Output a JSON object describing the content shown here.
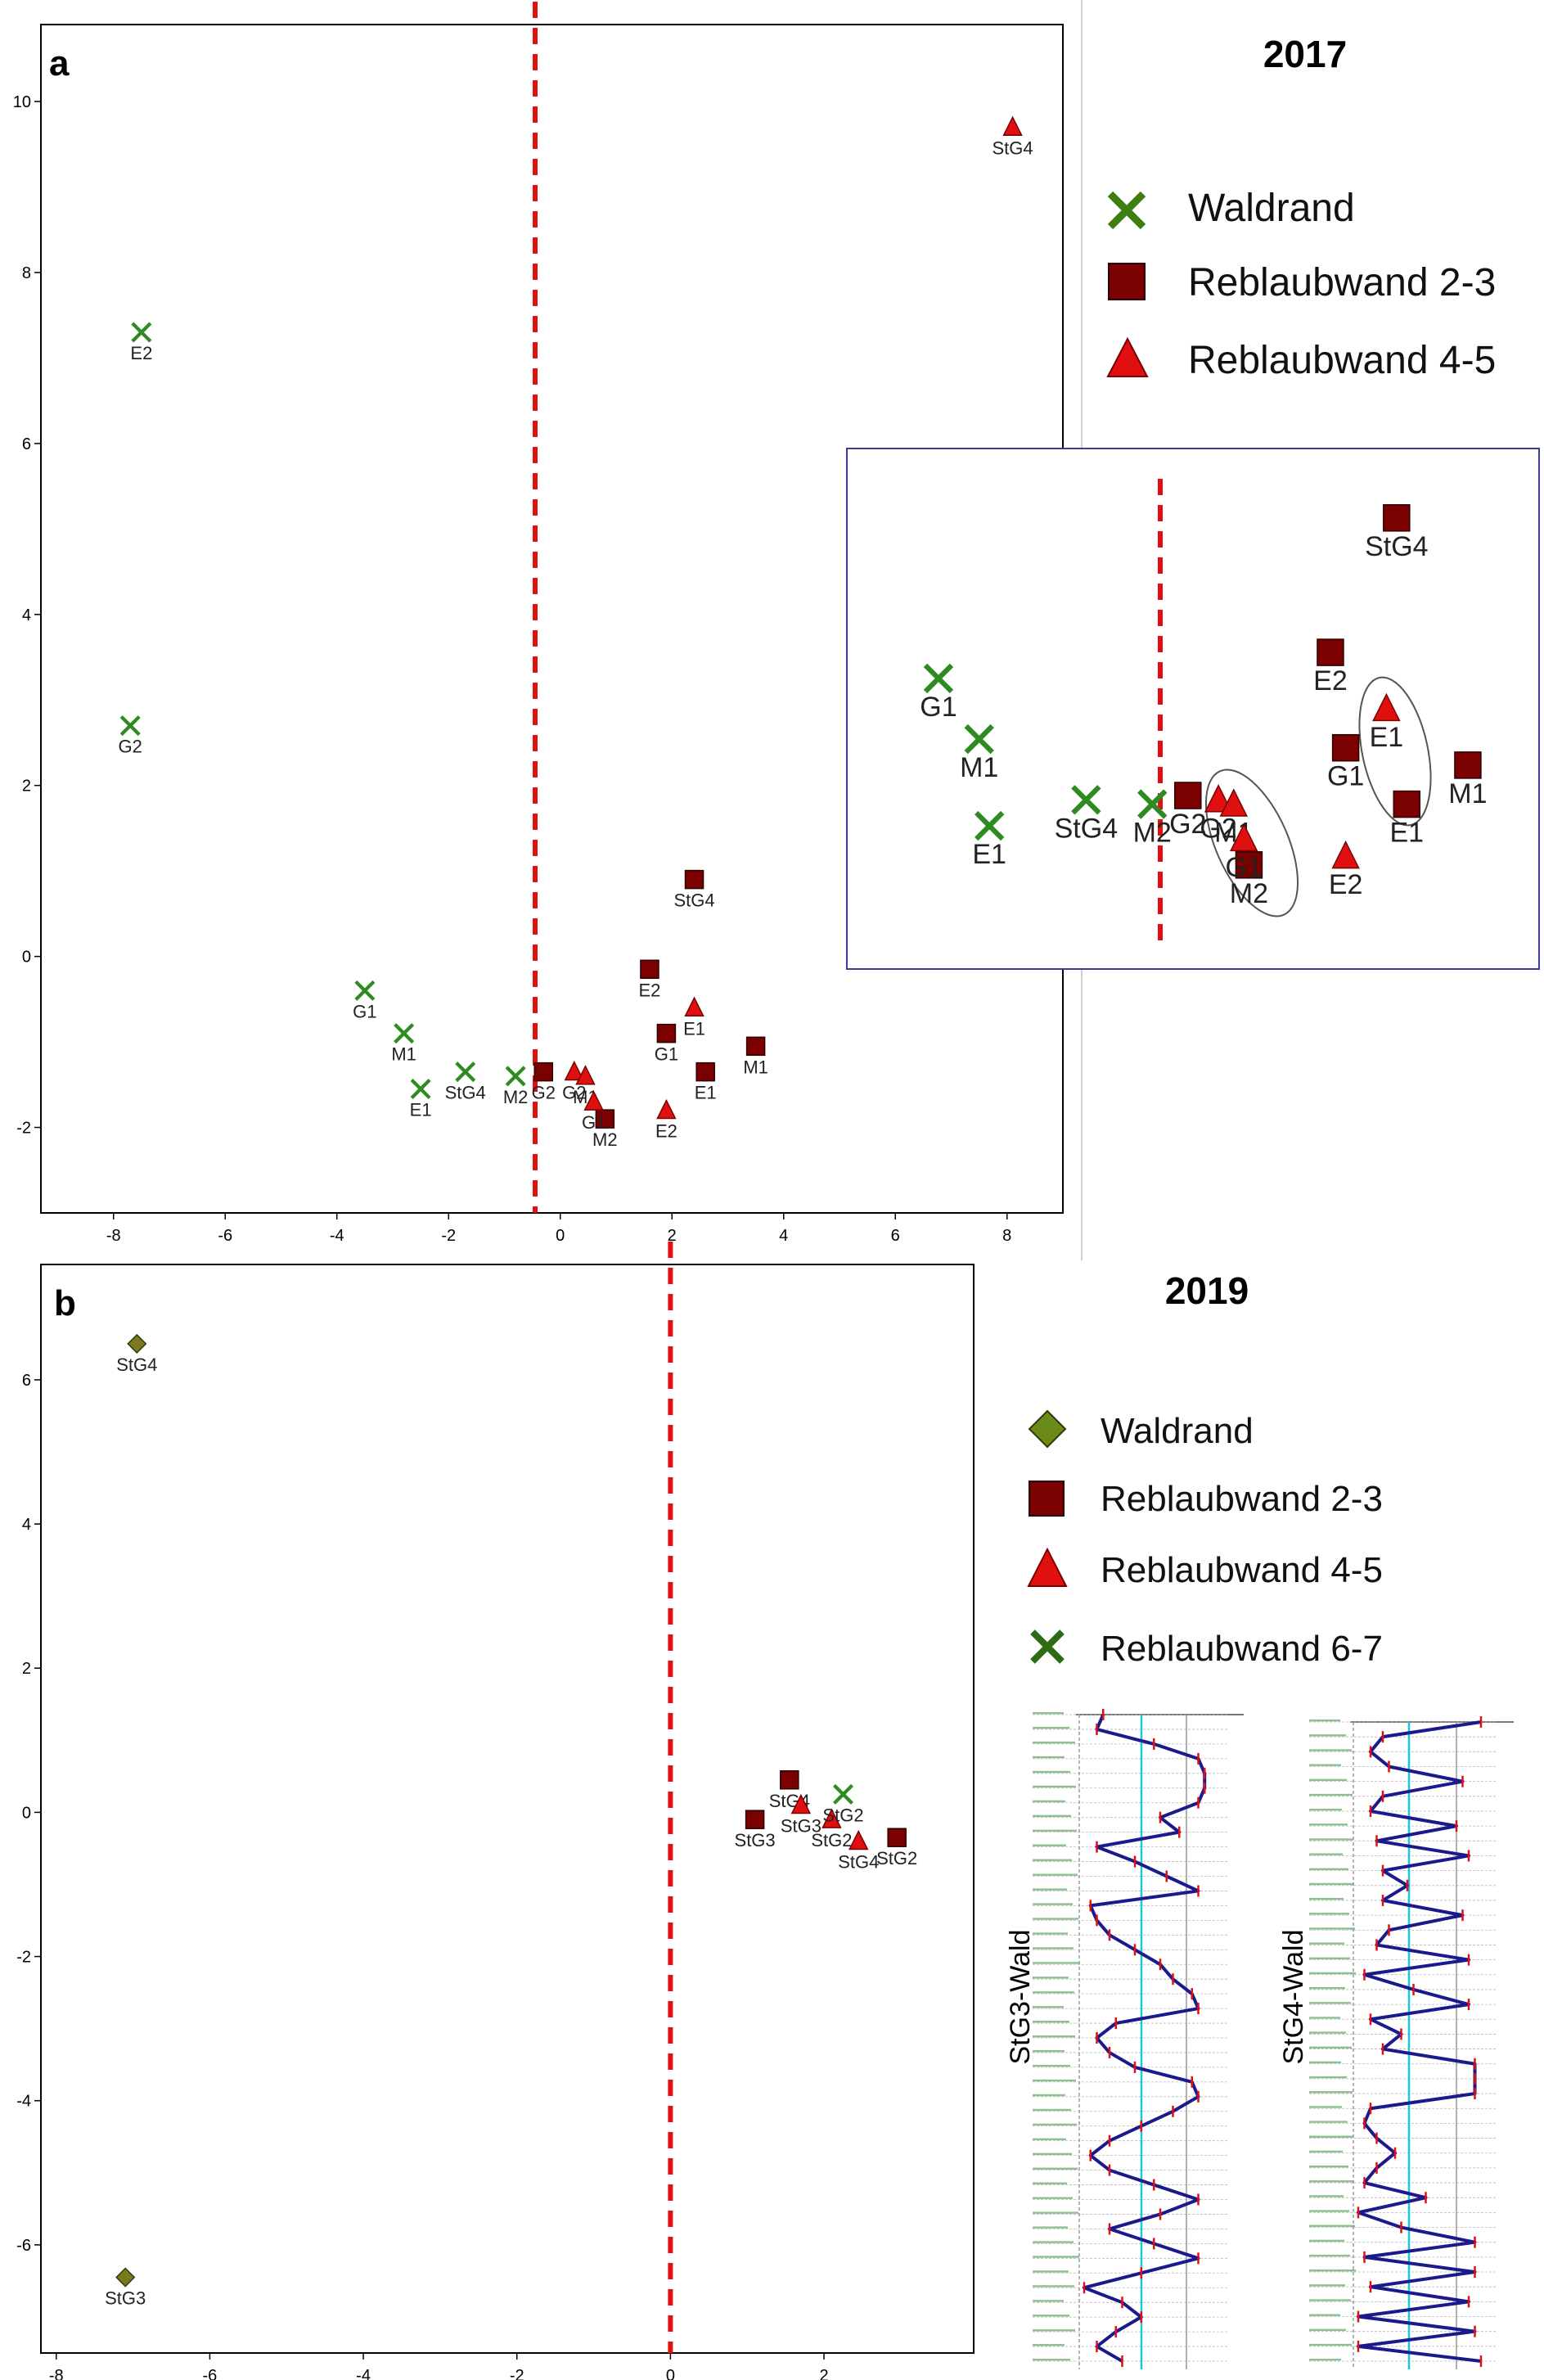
{
  "colors": {
    "green": "#2e8b22",
    "olive": "#7a7a1c",
    "darkred": "#7b0000",
    "red": "#e01010",
    "dash": "#e01010",
    "frame": "#000000",
    "inset_frame": "#3b3b9a",
    "profile_line": "#1a1a8c",
    "profile_tick": "#e01010",
    "cyan": "#18c8e0"
  },
  "chart_data": [
    {
      "id": "a",
      "type": "scatter",
      "panel_label": "a",
      "title": "2017",
      "xlim": [
        -9.3,
        9.0
      ],
      "ylim": [
        -3.0,
        10.9
      ],
      "xticks": [
        -8,
        -6,
        -4,
        -2,
        0,
        2,
        4,
        6,
        8
      ],
      "yticks": [
        10,
        8,
        6,
        4,
        2,
        0,
        -2
      ],
      "xtick_labels": [
        "-8",
        "-6",
        "-4",
        "-2",
        "0",
        "2",
        "4",
        "6",
        "8"
      ],
      "ytick_labels": [
        "10",
        "8",
        "6",
        "4",
        "2",
        "0",
        "-2"
      ],
      "divider_x": -0.45,
      "legend": [
        {
          "label": "Waldrand",
          "marker": "x",
          "color": "#2e8b22"
        },
        {
          "label": "Reblaubwand 2-3",
          "marker": "square",
          "color": "#7b0000"
        },
        {
          "label": "Reblaubwand 4-5",
          "marker": "triangle",
          "color": "#e01010"
        }
      ],
      "series": [
        {
          "name": "Waldrand",
          "marker": "x",
          "color": "#2e8b22",
          "points": [
            {
              "x": -7.5,
              "y": 7.3,
              "label": "E2"
            },
            {
              "x": -7.7,
              "y": 2.7,
              "label": "G2"
            },
            {
              "x": -3.5,
              "y": -0.4,
              "label": "G1"
            },
            {
              "x": -2.8,
              "y": -0.9,
              "label": "M1"
            },
            {
              "x": -2.5,
              "y": -1.55,
              "label": "E1"
            },
            {
              "x": -1.7,
              "y": -1.35,
              "label": "StG4"
            },
            {
              "x": -0.8,
              "y": -1.4,
              "label": "M2"
            }
          ]
        },
        {
          "name": "Reblaubwand 2-3",
          "marker": "square",
          "color": "#7b0000",
          "points": [
            {
              "x": 2.4,
              "y": 0.9,
              "label": "StG4"
            },
            {
              "x": 1.6,
              "y": -0.15,
              "label": "E2"
            },
            {
              "x": 1.9,
              "y": -0.9,
              "label": "G1"
            },
            {
              "x": 2.6,
              "y": -1.35,
              "label": "E1"
            },
            {
              "x": 3.5,
              "y": -1.05,
              "label": "M1"
            },
            {
              "x": -0.3,
              "y": -1.35,
              "label": "G2"
            },
            {
              "x": 0.8,
              "y": -1.9,
              "label": "M2"
            }
          ]
        },
        {
          "name": "Reblaubwand 4-5",
          "marker": "triangle",
          "color": "#e01010",
          "points": [
            {
              "x": 8.1,
              "y": 9.7,
              "label": "StG4"
            },
            {
              "x": 2.4,
              "y": -0.6,
              "label": "E1"
            },
            {
              "x": 1.9,
              "y": -1.8,
              "label": "E2"
            },
            {
              "x": 0.25,
              "y": -1.35,
              "label": "G2"
            },
            {
              "x": 0.45,
              "y": -1.4,
              "label": "M1"
            },
            {
              "x": 0.6,
              "y": -1.7,
              "label": "G1"
            }
          ]
        }
      ],
      "inset": {
        "note": "enlarged view of the cluster near the origin",
        "points": [
          {
            "series": "Waldrand",
            "marker": "x",
            "label": "G1",
            "x": -2.3,
            "y": 3.35
          },
          {
            "series": "Waldrand",
            "marker": "x",
            "label": "M1",
            "x": -1.9,
            "y": 2.65
          },
          {
            "series": "Waldrand",
            "marker": "x",
            "label": "E1",
            "x": -1.8,
            "y": 1.65
          },
          {
            "series": "Waldrand",
            "marker": "x",
            "label": "StG4",
            "x": -0.85,
            "y": 1.95
          },
          {
            "series": "Waldrand",
            "marker": "x",
            "label": "M2",
            "x": -0.2,
            "y": 1.9
          },
          {
            "series": "Reblaubwand 2-3",
            "marker": "square",
            "label": "StG4",
            "x": 2.2,
            "y": 5.2
          },
          {
            "series": "Reblaubwand 2-3",
            "marker": "square",
            "label": "E2",
            "x": 1.55,
            "y": 3.65
          },
          {
            "series": "Reblaubwand 2-3",
            "marker": "square",
            "label": "G1",
            "x": 1.7,
            "y": 2.55
          },
          {
            "series": "Reblaubwand 2-3",
            "marker": "square",
            "label": "E1",
            "x": 2.3,
            "y": 1.9
          },
          {
            "series": "Reblaubwand 2-3",
            "marker": "square",
            "label": "M1",
            "x": 2.9,
            "y": 2.35
          },
          {
            "series": "Reblaubwand 2-3",
            "marker": "square",
            "label": "G2",
            "x": 0.15,
            "y": 2.0
          },
          {
            "series": "Reblaubwand 2-3",
            "marker": "square",
            "label": "M2",
            "x": 0.75,
            "y": 1.2
          },
          {
            "series": "Reblaubwand 4-5",
            "marker": "triangle",
            "label": "E1",
            "x": 2.1,
            "y": 3.0
          },
          {
            "series": "Reblaubwand 4-5",
            "marker": "triangle",
            "label": "E2",
            "x": 1.7,
            "y": 1.3
          },
          {
            "series": "Reblaubwand 4-5",
            "marker": "triangle",
            "label": "G2",
            "x": 0.45,
            "y": 1.95
          },
          {
            "series": "Reblaubwand 4-5",
            "marker": "triangle",
            "label": "M1",
            "x": 0.6,
            "y": 1.9
          },
          {
            "series": "Reblaubwand 4-5",
            "marker": "triangle",
            "label": "G1",
            "x": 0.7,
            "y": 1.5
          }
        ]
      }
    },
    {
      "id": "b",
      "type": "scatter",
      "panel_label": "b",
      "title": "2019",
      "xlim": [
        -8.2,
        3.95
      ],
      "ylim": [
        -7.5,
        7.6
      ],
      "xticks": [
        -8,
        -6,
        -4,
        -2,
        0,
        2
      ],
      "yticks": [
        6,
        4,
        2,
        0,
        -2,
        -4,
        -6
      ],
      "xtick_labels": [
        "-8",
        "-6",
        "-4",
        "-2",
        "0",
        "2"
      ],
      "ytick_labels": [
        "6",
        "4",
        "2",
        "0",
        "-2",
        "-4",
        "-6"
      ],
      "divider_x": 0.0,
      "legend": [
        {
          "label": "Waldrand",
          "marker": "diamond",
          "color": "#6a8a1a"
        },
        {
          "label": "Reblaubwand 2-3",
          "marker": "square",
          "color": "#7b0000"
        },
        {
          "label": "Reblaubwand 4-5",
          "marker": "triangle",
          "color": "#e01010"
        },
        {
          "label": "Reblaubwand 6-7",
          "marker": "x",
          "color": "#2e6b12"
        }
      ],
      "series": [
        {
          "name": "Waldrand",
          "marker": "diamond",
          "color": "#7a7a1c",
          "points": [
            {
              "x": -6.95,
              "y": 6.5,
              "label": "StG4"
            },
            {
              "x": -7.1,
              "y": -6.45,
              "label": "StG3"
            }
          ]
        },
        {
          "name": "Reblaubwand 2-3",
          "marker": "square",
          "color": "#7b0000",
          "points": [
            {
              "x": 1.55,
              "y": 0.45,
              "label": "StG4"
            },
            {
              "x": 1.1,
              "y": -0.1,
              "label": "StG3"
            },
            {
              "x": 2.95,
              "y": -0.35,
              "label": "StG2"
            }
          ]
        },
        {
          "name": "Reblaubwand 4-5",
          "marker": "triangle",
          "color": "#e01010",
          "points": [
            {
              "x": 1.7,
              "y": 0.1,
              "label": "StG3"
            },
            {
              "x": 2.1,
              "y": -0.1,
              "label": "StG2"
            },
            {
              "x": 2.45,
              "y": -0.4,
              "label": "StG4"
            }
          ]
        },
        {
          "name": "Reblaubwand 6-7",
          "marker": "x",
          "color": "#2e8b22",
          "points": [
            {
              "x": 2.25,
              "y": 0.25,
              "label": "StG2"
            }
          ]
        }
      ]
    }
  ],
  "profiles": {
    "stg3": {
      "label": "StG3-Wald",
      "values": [
        0.15,
        0.1,
        0.55,
        0.9,
        0.95,
        0.95,
        0.9,
        0.6,
        0.75,
        0.1,
        0.4,
        0.65,
        0.9,
        0.05,
        0.1,
        0.2,
        0.4,
        0.6,
        0.7,
        0.85,
        0.9,
        0.25,
        0.1,
        0.2,
        0.4,
        0.85,
        0.9,
        0.7,
        0.45,
        0.2,
        0.05,
        0.2,
        0.55,
        0.9,
        0.6,
        0.2,
        0.55,
        0.9,
        0.45,
        0.0,
        0.3,
        0.45,
        0.25,
        0.1,
        0.3
      ]
    },
    "stg4": {
      "label": "StG4-Wald",
      "values": [
        1.0,
        0.2,
        0.1,
        0.25,
        0.85,
        0.2,
        0.1,
        0.8,
        0.15,
        0.9,
        0.2,
        0.4,
        0.2,
        0.85,
        0.25,
        0.15,
        0.9,
        0.05,
        0.45,
        0.9,
        0.1,
        0.35,
        0.2,
        0.95,
        0.95,
        0.95,
        0.1,
        0.05,
        0.15,
        0.3,
        0.15,
        0.05,
        0.55,
        0.0,
        0.35,
        0.95,
        0.05,
        0.95,
        0.1,
        0.9,
        0.0,
        0.95,
        0.0,
        1.0
      ]
    }
  }
}
